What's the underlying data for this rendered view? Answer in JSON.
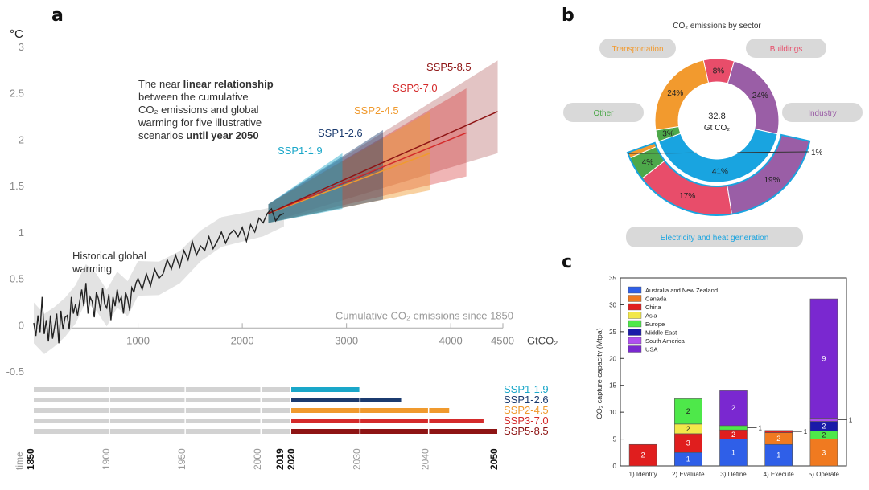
{
  "panel_labels": {
    "a": "a",
    "b": "b",
    "c": "c"
  },
  "colors": {
    "ssp1_19": "#1aa7c9",
    "ssp1_26": "#1b3b6f",
    "ssp2_45": "#f09a2e",
    "ssp3_70": "#d42b2b",
    "ssp5_85": "#8e1414",
    "historical": "#222222",
    "grey_bar": "#d2d2d2"
  },
  "chart_data": [
    {
      "type": "line",
      "panel": "a",
      "ylabel": "°C",
      "xlabel": "Cumulative CO₂ emissions since 1850",
      "x_unit": "GtCO₂",
      "xlim": [
        0,
        4500
      ],
      "ylim": [
        -0.5,
        3
      ],
      "x_ticks": [
        "1000",
        "2000",
        "3000",
        "4000",
        "4500"
      ],
      "y_ticks": [
        "3",
        "2.5",
        "2",
        "1.5",
        "1",
        "0.5",
        "0",
        "-0.5"
      ],
      "annotation_lines": [
        "The near ",
        "linear relationship",
        "between the cumulative",
        "CO₂ emissions and global",
        "warming for five illustrative",
        "scenarios ",
        "until year 2050"
      ],
      "historical_label": [
        "Historical global",
        "warming"
      ],
      "historical": {
        "x": [
          0,
          20,
          40,
          60,
          80,
          100,
          120,
          140,
          160,
          180,
          200,
          220,
          240,
          260,
          280,
          300,
          320,
          340,
          360,
          380,
          400,
          420,
          440,
          460,
          480,
          500,
          520,
          540,
          560,
          580,
          600,
          620,
          640,
          660,
          680,
          700,
          720,
          740,
          760,
          780,
          800,
          820,
          840,
          860,
          880,
          900,
          920,
          940,
          960,
          980,
          1000,
          1040,
          1080,
          1120,
          1160,
          1200,
          1240,
          1280,
          1320,
          1360,
          1400,
          1440,
          1480,
          1520,
          1560,
          1600,
          1640,
          1680,
          1720,
          1760,
          1800,
          1840,
          1880,
          1920,
          1960,
          2000,
          2040,
          2080,
          2120,
          2160,
          2200,
          2240,
          2280,
          2320,
          2360,
          2400
        ],
        "y": [
          0.02,
          -0.12,
          0.1,
          -0.08,
          0.3,
          -0.1,
          0.05,
          -0.18,
          0.1,
          -0.15,
          -0.02,
          0.12,
          -0.2,
          0.15,
          -0.05,
          0.08,
          0.1,
          -0.05,
          0.3,
          0.12,
          0.22,
          0.1,
          0.25,
          0.38,
          0.2,
          0.45,
          0.12,
          0.3,
          0.25,
          0.08,
          0.35,
          0.28,
          0.15,
          0.4,
          0.22,
          0.18,
          0.33,
          0.05,
          0.3,
          0.2,
          0.38,
          0.25,
          0.3,
          0.12,
          0.35,
          0.28,
          0.15,
          0.4,
          0.35,
          0.45,
          0.5,
          0.38,
          0.55,
          0.42,
          0.6,
          0.5,
          0.55,
          0.7,
          0.6,
          0.75,
          0.62,
          0.8,
          0.7,
          0.9,
          0.75,
          0.85,
          0.8,
          0.95,
          0.82,
          0.9,
          1.0,
          0.88,
          0.98,
          1.02,
          0.95,
          1.05,
          0.9,
          1.08,
          1.0,
          1.15,
          1.1,
          1.2,
          1.25,
          1.12,
          1.18,
          1.2
        ]
      },
      "series": [
        {
          "name": "SSP1-1.9",
          "x_end": 2960,
          "y_end": 1.52,
          "upper_end": 1.85,
          "lower_end": 1.25
        },
        {
          "name": "SSP1-2.6",
          "x_end": 3350,
          "y_end": 1.7,
          "upper_end": 2.1,
          "lower_end": 1.35
        },
        {
          "name": "SSP2-4.5",
          "x_end": 3800,
          "y_end": 1.85,
          "upper_end": 2.3,
          "lower_end": 1.45
        },
        {
          "name": "SSP3-7.0",
          "x_end": 4150,
          "y_end": 2.07,
          "upper_end": 2.55,
          "lower_end": 1.6
        },
        {
          "name": "SSP5-8.5",
          "x_end": 4450,
          "y_end": 2.3,
          "upper_end": 2.85,
          "lower_end": 1.85
        }
      ]
    },
    {
      "type": "bar",
      "panel": "a-timeline",
      "title": "time",
      "x_ticks": [
        "1850",
        "1900",
        "1950",
        "2000",
        "2019",
        "2020",
        "2030",
        "2040",
        "2050"
      ],
      "series": [
        {
          "name": "SSP1-1.9",
          "end_year": 2030
        },
        {
          "name": "SSP1-2.6",
          "end_year": 2036
        },
        {
          "name": "SSP2-4.5",
          "end_year": 2043
        },
        {
          "name": "SSP3-7.0",
          "end_year": 2048
        },
        {
          "name": "SSP5-8.5",
          "end_year": 2050
        }
      ]
    },
    {
      "type": "pie",
      "panel": "b",
      "title": "CO₂ emissions by sector",
      "center_lines": [
        "32.8",
        "Gt CO₂"
      ],
      "slices": [
        {
          "label": "8%",
          "value": 8,
          "color": "#e84d6a"
        },
        {
          "label": "24%",
          "value": 24,
          "color": "#9a5ea6"
        },
        {
          "label": "41%",
          "value": 41,
          "color": "#19a4e0"
        },
        {
          "label": "3%",
          "value": 3,
          "color": "#4da84a"
        },
        {
          "label": "24%",
          "value": 24,
          "color": "#f29a2e"
        }
      ],
      "sub_slices": [
        {
          "label": "1%",
          "value": 1,
          "color": "#f29a2e"
        },
        {
          "label": "4%",
          "value": 4,
          "color": "#4da84a"
        },
        {
          "label": "17%",
          "value": 17,
          "color": "#e84d6a"
        },
        {
          "label": "19%",
          "value": 19,
          "color": "#9a5ea6"
        }
      ],
      "sector_labels": [
        {
          "text": "Transportation",
          "color": "#f29a2e"
        },
        {
          "text": "Buildings",
          "color": "#e84d6a"
        },
        {
          "text": "Other",
          "color": "#4da84a"
        },
        {
          "text": "Industry",
          "color": "#9a5ea6"
        },
        {
          "text": "Electricity and heat generation",
          "color": "#19a4e0"
        }
      ]
    },
    {
      "type": "bar",
      "panel": "c",
      "ylabel": "CO₂ capture capacity (Mtpa)",
      "ylim": [
        0,
        35
      ],
      "y_ticks": [
        "0",
        "5",
        "10",
        "15",
        "20",
        "25",
        "30",
        "35"
      ],
      "categories": [
        "1) Identify",
        "2) Evaluate",
        "3) Define",
        "4) Execute",
        "5) Operate"
      ],
      "legend": [
        {
          "name": "Australia and New Zealand",
          "color": "#2f5fe8"
        },
        {
          "name": "Canada",
          "color": "#f07a20"
        },
        {
          "name": "China",
          "color": "#e01e1e"
        },
        {
          "name": "Asia",
          "color": "#f2e84a"
        },
        {
          "name": "Europe",
          "color": "#4ee84a"
        },
        {
          "name": "Middle East",
          "color": "#1a1aa8"
        },
        {
          "name": "South America",
          "color": "#b04ef0"
        },
        {
          "name": "USA",
          "color": "#7a28d0"
        }
      ],
      "stacks": [
        [
          {
            "region": "China",
            "value": 4,
            "label": "2"
          }
        ],
        [
          {
            "region": "Australia and New Zealand",
            "value": 2.5,
            "label": "1"
          },
          {
            "region": "China",
            "value": 3.5,
            "label": "3"
          },
          {
            "region": "Asia",
            "value": 1.8,
            "label": "2"
          },
          {
            "region": "Europe",
            "value": 4.7,
            "label": "2"
          }
        ],
        [
          {
            "region": "Australia and New Zealand",
            "value": 5.0,
            "label": "1"
          },
          {
            "region": "China",
            "value": 1.7,
            "label": "2"
          },
          {
            "region": "Europe",
            "value": 0.8,
            "label": "1",
            "callout": true
          },
          {
            "region": "USA",
            "value": 6.5,
            "label": "2"
          }
        ],
        [
          {
            "region": "Australia and New Zealand",
            "value": 4.0,
            "label": "1"
          },
          {
            "region": "Canada",
            "value": 2.2,
            "label": "2"
          },
          {
            "region": "China",
            "value": 0.4,
            "label": "1",
            "callout": true
          }
        ],
        [
          {
            "region": "Canada",
            "value": 5.0,
            "label": "3"
          },
          {
            "region": "Europe",
            "value": 1.5,
            "label": "2"
          },
          {
            "region": "Middle East",
            "value": 1.8,
            "label": "2"
          },
          {
            "region": "South America",
            "value": 0.6,
            "label": "1",
            "callout": true
          },
          {
            "region": "USA",
            "value": 22.2,
            "label": "9"
          }
        ]
      ]
    }
  ]
}
